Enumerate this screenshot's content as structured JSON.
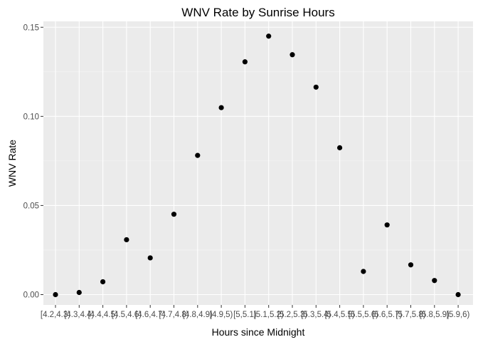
{
  "chart_data": {
    "type": "scatter",
    "title": "WNV Rate by Sunrise Hours",
    "xlabel": "Hours since Midnight",
    "ylabel": "WNV Rate",
    "categories": [
      "[4.2,4.3)",
      "[4.3,4.4)",
      "[4.4,4.5)",
      "[4.5,4.6)",
      "[4.6,4.7)",
      "[4.7,4.8)",
      "[4.8,4.9)",
      "[4.9,5)",
      "[5,5.1)",
      "[5.1,5.2)",
      "[5.2,5.3)",
      "[5.3,5.4)",
      "[5.4,5.5)",
      "[5.5,5.6)",
      "[5.6,5.7)",
      "[5.7,5.8)",
      "[5.8,5.9)",
      "[5.9,6)"
    ],
    "values": [
      0.0,
      0.0012,
      0.0072,
      0.0308,
      0.0206,
      0.0451,
      0.0781,
      0.1049,
      0.1306,
      0.145,
      0.1346,
      0.1164,
      0.0824,
      0.013,
      0.0391,
      0.0167,
      0.0079,
      0.0
    ],
    "yticks": [
      "0.00",
      "0.05",
      "0.10",
      "0.15"
    ],
    "ylim": [
      -0.0058,
      0.1533
    ],
    "grid": true,
    "colors": {
      "panel": "#EBEBEB",
      "grid_major": "#FFFFFF",
      "point": "#000000"
    }
  }
}
